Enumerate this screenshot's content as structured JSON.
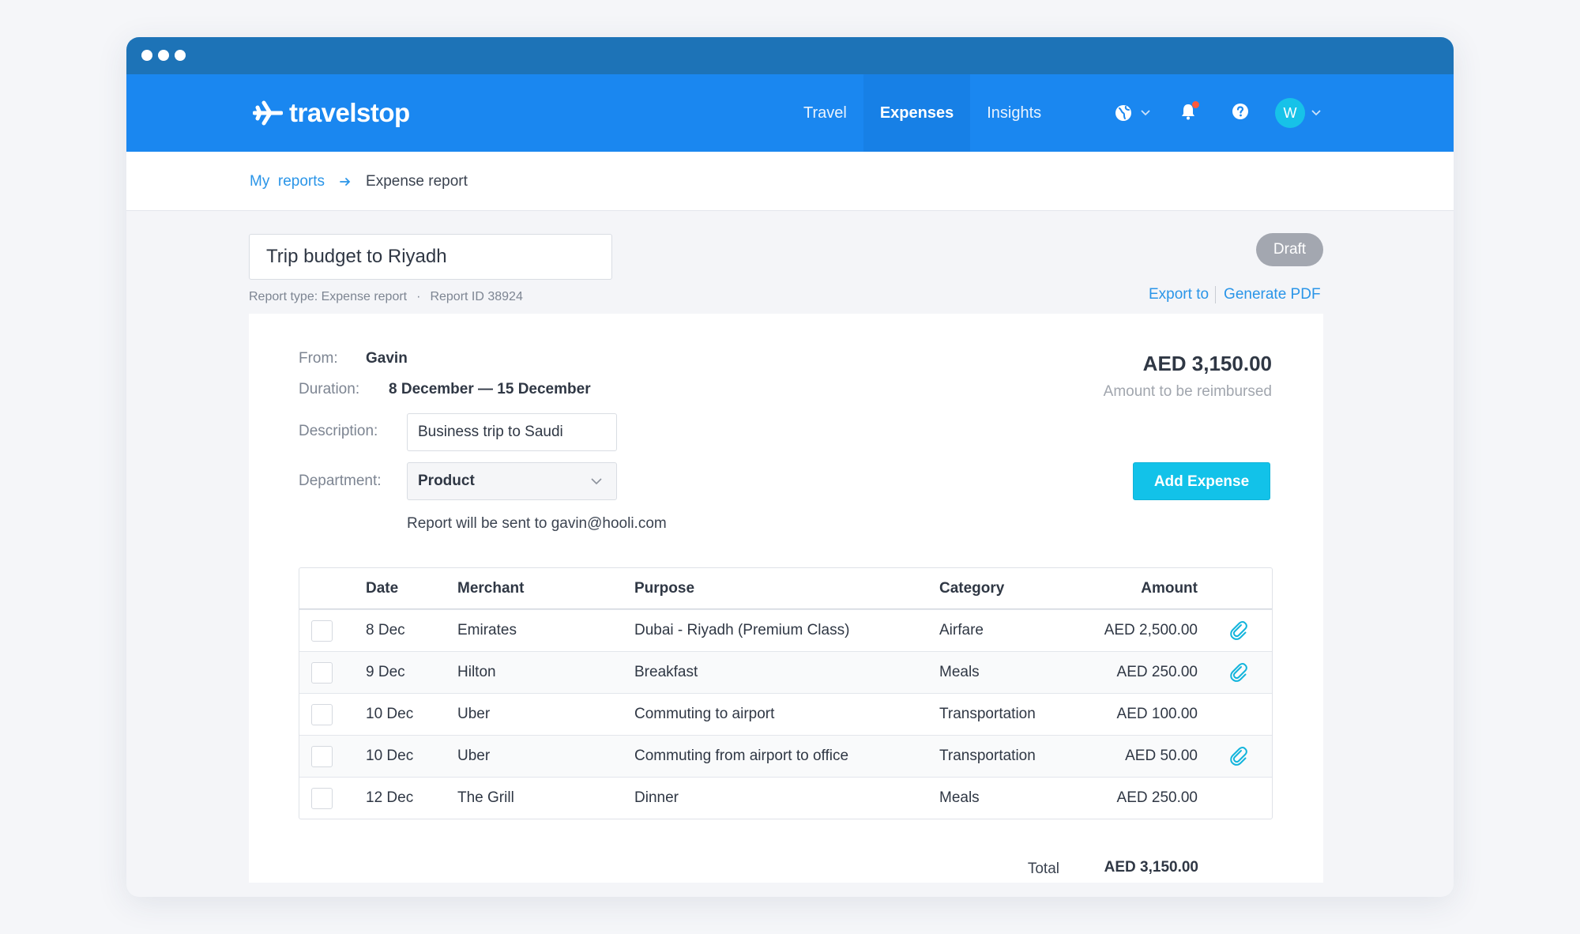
{
  "app": {
    "brand": "travelstop",
    "colors": {
      "nav": "#1a87f0",
      "titlebar": "#1d73b7",
      "accent": "#12c2e9",
      "link": "#2a95e8",
      "badge": "#a3a7b0"
    }
  },
  "nav": {
    "links": [
      {
        "label": "Travel",
        "active": false
      },
      {
        "label": "Expenses",
        "active": true
      },
      {
        "label": "Insights",
        "active": false
      }
    ],
    "icons": [
      "globe-icon",
      "bell-icon",
      "help-icon"
    ],
    "avatar_initial": "W"
  },
  "breadcrumb": {
    "parent_word1": "My",
    "parent_word2": "reports",
    "current": "Expense report"
  },
  "report": {
    "title": "Trip budget to Riyadh",
    "type_label": "Report type: Expense report",
    "separator": "·",
    "id_label": "Report ID 38924",
    "status": "Draft",
    "export_label": "Export to",
    "pdf_label": "Generate PDF"
  },
  "details": {
    "from_label": "From:",
    "from_value": "Gavin",
    "duration_label": "Duration:",
    "duration_value": "8 December — 15 December",
    "description_label": "Description:",
    "description_value": "Business trip to Saudi",
    "department_label": "Department:",
    "department_value": "Product",
    "sent_to": "Report will be sent to gavin@hooli.com",
    "amount": "AED 3,150.00",
    "amount_caption": "Amount to be reimbursed",
    "add_button": "Add Expense"
  },
  "table": {
    "headers": {
      "date": "Date",
      "merchant": "Merchant",
      "purpose": "Purpose",
      "category": "Category",
      "amount": "Amount"
    },
    "rows": [
      {
        "date": "8 Dec",
        "merchant": "Emirates",
        "purpose": "Dubai - Riyadh (Premium Class)",
        "category": "Airfare",
        "amount": "AED 2,500.00",
        "attachment": true
      },
      {
        "date": "9 Dec",
        "merchant": "Hilton",
        "purpose": "Breakfast",
        "category": "Meals",
        "amount": "AED 250.00",
        "attachment": true
      },
      {
        "date": "10 Dec",
        "merchant": "Uber",
        "purpose": "Commuting to airport",
        "category": "Transportation",
        "amount": "AED 100.00",
        "attachment": false
      },
      {
        "date": "10 Dec",
        "merchant": "Uber",
        "purpose": "Commuting from airport to office",
        "category": "Transportation",
        "amount": "AED 50.00",
        "attachment": true
      },
      {
        "date": "12 Dec",
        "merchant": "The Grill",
        "purpose": "Dinner",
        "category": "Meals",
        "amount": "AED 250.00",
        "attachment": false
      }
    ],
    "total_label": "Total",
    "total_value": "AED 3,150.00"
  }
}
